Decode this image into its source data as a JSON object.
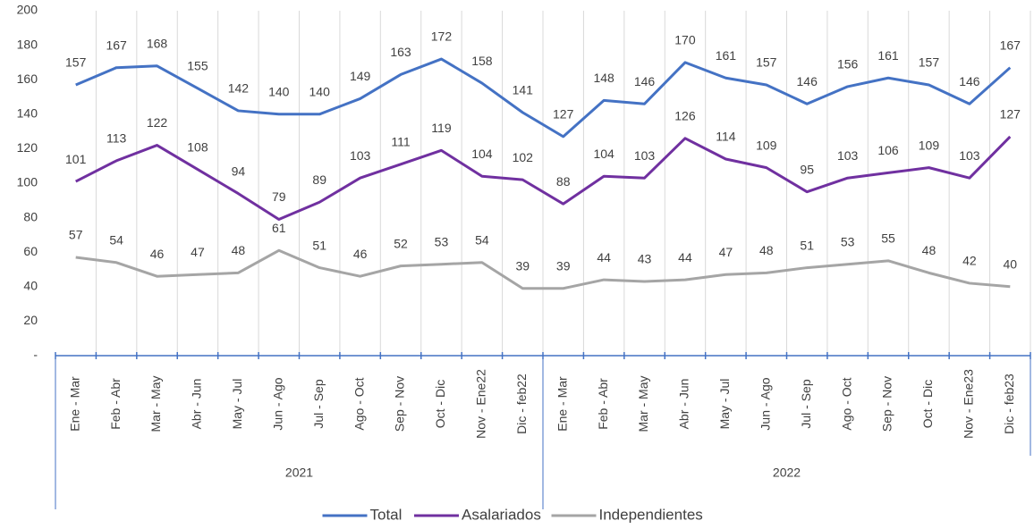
{
  "chart_data": {
    "type": "line",
    "groups": [
      {
        "label": "2021",
        "categories": [
          "Ene - Mar",
          "Feb - Abr",
          "Mar - May",
          "Abr - Jun",
          "May - Jul",
          "Jun - Ago",
          "Jul - Sep",
          "Ago - Oct",
          "Sep - Nov",
          "Oct - Dic",
          "Nov - Ene22",
          "Dic - feb22"
        ]
      },
      {
        "label": "2022",
        "categories": [
          "Ene - Mar",
          "Feb - Abr",
          "Mar - May",
          "Abr - Jun",
          "May - Jul",
          "Jun - Ago",
          "Jul - Sep",
          "Ago - Oct",
          "Sep - Nov",
          "Oct - Dic",
          "Nov - Ene23",
          "Dic - feb23"
        ]
      }
    ],
    "series": [
      {
        "name": "Total",
        "color": "#4472c4",
        "values": [
          157,
          167,
          168,
          155,
          142,
          140,
          140,
          149,
          163,
          172,
          158,
          141,
          127,
          148,
          146,
          170,
          161,
          157,
          146,
          156,
          161,
          157,
          146,
          167
        ]
      },
      {
        "name": "Asalariados",
        "color": "#7030a0",
        "values": [
          101,
          113,
          122,
          108,
          94,
          79,
          89,
          103,
          111,
          119,
          104,
          102,
          88,
          104,
          103,
          126,
          114,
          109,
          95,
          103,
          106,
          109,
          103,
          127
        ]
      },
      {
        "name": "Independientes",
        "color": "#a5a5a5",
        "values": [
          57,
          54,
          46,
          47,
          48,
          61,
          51,
          46,
          52,
          53,
          54,
          39,
          39,
          44,
          43,
          44,
          47,
          48,
          51,
          53,
          55,
          48,
          42,
          40
        ]
      }
    ],
    "ylim": [
      0,
      200
    ],
    "yticks": [
      {
        "value": 0,
        "label": "-"
      },
      20,
      40,
      60,
      80,
      100,
      120,
      140,
      160,
      180,
      200
    ],
    "grid": true,
    "legend": "bottom"
  }
}
